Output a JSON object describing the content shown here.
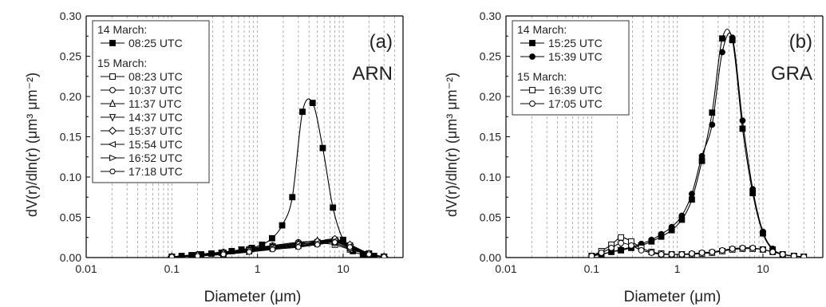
{
  "chart_data": [
    {
      "type": "line",
      "panel_label": "(a)",
      "site_label": "ARN",
      "xlabel": "Diameter (μm)",
      "ylabel": "dV(r)/dln(r) (μm³ μm⁻²)",
      "xscale": "log",
      "xlim": [
        0.01,
        50
      ],
      "ylim": [
        0,
        0.3
      ],
      "x_ticks": [
        "0.01",
        "0.1",
        "1",
        "10"
      ],
      "y_ticks": [
        "0.00",
        "0.05",
        "0.10",
        "0.15",
        "0.20",
        "0.25",
        "0.30"
      ],
      "legend": {
        "groups": [
          {
            "header": "14 March:",
            "entries": [
              "08:25 UTC"
            ]
          },
          {
            "header": "15 March:",
            "entries": [
              "08:23 UTC",
              "10:37 UTC",
              "11:37 UTC",
              "14:37 UTC",
              "15:37 UTC",
              "15:54 UTC",
              "16:52 UTC",
              "17:18 UTC"
            ]
          }
        ]
      },
      "series": [
        {
          "name": "08:25 UTC",
          "marker": "filled-square",
          "x": [
            0.1,
            0.13,
            0.17,
            0.22,
            0.29,
            0.38,
            0.5,
            0.65,
            0.86,
            1.13,
            1.48,
            1.94,
            2.55,
            3.35,
            4.4,
            5.78,
            7.6,
            10,
            13,
            17,
            23,
            30
          ],
          "y": [
            0.001,
            0.002,
            0.003,
            0.004,
            0.005,
            0.006,
            0.008,
            0.01,
            0.012,
            0.016,
            0.024,
            0.04,
            0.075,
            0.181,
            0.192,
            0.136,
            0.062,
            0.022,
            0.008,
            0.004,
            0.002,
            0.001
          ]
        },
        {
          "name": "08:23 UTC",
          "marker": "open-square",
          "x": [
            0.1,
            0.2,
            0.4,
            0.8,
            1.5,
            3,
            5,
            8,
            12,
            20,
            30
          ],
          "y": [
            0.001,
            0.003,
            0.006,
            0.01,
            0.014,
            0.017,
            0.018,
            0.016,
            0.01,
            0.004,
            0.001
          ]
        },
        {
          "name": "10:37 UTC",
          "marker": "open-circle",
          "x": [
            0.1,
            0.2,
            0.4,
            0.8,
            1.5,
            3,
            5,
            8,
            12,
            20,
            30
          ],
          "y": [
            0.001,
            0.004,
            0.007,
            0.011,
            0.015,
            0.019,
            0.02,
            0.018,
            0.011,
            0.004,
            0.001
          ]
        },
        {
          "name": "11:37 UTC",
          "marker": "open-triangle-up",
          "x": [
            0.1,
            0.2,
            0.4,
            0.8,
            1.5,
            3,
            5,
            8,
            12,
            20,
            30
          ],
          "y": [
            0.001,
            0.003,
            0.006,
            0.01,
            0.014,
            0.018,
            0.021,
            0.02,
            0.012,
            0.004,
            0.001
          ]
        },
        {
          "name": "14:37 UTC",
          "marker": "open-triangle-down",
          "x": [
            0.1,
            0.2,
            0.4,
            0.8,
            1.5,
            3,
            5,
            8,
            12,
            20,
            30
          ],
          "y": [
            0.001,
            0.002,
            0.005,
            0.009,
            0.013,
            0.017,
            0.019,
            0.022,
            0.015,
            0.005,
            0.001
          ]
        },
        {
          "name": "15:37 UTC",
          "marker": "open-diamond",
          "x": [
            0.1,
            0.2,
            0.4,
            0.8,
            1.5,
            3,
            5,
            8,
            12,
            20,
            30
          ],
          "y": [
            0.001,
            0.003,
            0.005,
            0.008,
            0.012,
            0.016,
            0.02,
            0.023,
            0.016,
            0.005,
            0.001
          ]
        },
        {
          "name": "15:54 UTC",
          "marker": "open-triangle-left",
          "x": [
            0.1,
            0.2,
            0.4,
            0.8,
            1.5,
            3,
            5,
            8,
            12,
            20,
            30
          ],
          "y": [
            0.001,
            0.002,
            0.004,
            0.008,
            0.012,
            0.015,
            0.018,
            0.021,
            0.014,
            0.004,
            0.001
          ]
        },
        {
          "name": "16:52 UTC",
          "marker": "open-triangle-right",
          "x": [
            0.1,
            0.2,
            0.4,
            0.8,
            1.5,
            3,
            5,
            8,
            12,
            20,
            30
          ],
          "y": [
            0.001,
            0.002,
            0.004,
            0.007,
            0.011,
            0.014,
            0.017,
            0.02,
            0.013,
            0.004,
            0.001
          ]
        },
        {
          "name": "17:18 UTC",
          "marker": "open-hexagon",
          "x": [
            0.1,
            0.2,
            0.4,
            0.8,
            1.5,
            3,
            5,
            8,
            12,
            20,
            30
          ],
          "y": [
            0.001,
            0.002,
            0.004,
            0.007,
            0.01,
            0.013,
            0.016,
            0.019,
            0.013,
            0.004,
            0.001
          ]
        }
      ]
    },
    {
      "type": "line",
      "panel_label": "(b)",
      "site_label": "GRA",
      "xlabel": "Diameter (μm)",
      "ylabel": "dV(r)/dln(r) (μm³ μm⁻²)",
      "xscale": "log",
      "xlim": [
        0.01,
        50
      ],
      "ylim": [
        0,
        0.3
      ],
      "x_ticks": [
        "0.01",
        "0.1",
        "1",
        "10"
      ],
      "y_ticks": [
        "0.00",
        "0.05",
        "0.10",
        "0.15",
        "0.20",
        "0.25",
        "0.30"
      ],
      "legend": {
        "groups": [
          {
            "header": "14 March:",
            "entries": [
              "15:25 UTC",
              "15:39 UTC"
            ]
          },
          {
            "header": "15 March:",
            "entries": [
              "16:39 UTC",
              "17:05 UTC"
            ]
          }
        ]
      },
      "series": [
        {
          "name": "15:25 UTC",
          "marker": "filled-square",
          "x": [
            0.1,
            0.13,
            0.17,
            0.22,
            0.29,
            0.38,
            0.5,
            0.65,
            0.86,
            1.13,
            1.48,
            1.94,
            2.55,
            3.35,
            4.4,
            5.78,
            7.6,
            10,
            13,
            17,
            23,
            30
          ],
          "y": [
            0.002,
            0.004,
            0.007,
            0.009,
            0.012,
            0.015,
            0.02,
            0.026,
            0.034,
            0.047,
            0.072,
            0.12,
            0.18,
            0.272,
            0.27,
            0.16,
            0.08,
            0.03,
            0.01,
            0.004,
            0.002,
            0.001
          ]
        },
        {
          "name": "15:39 UTC",
          "marker": "filled-circle",
          "x": [
            0.1,
            0.13,
            0.17,
            0.22,
            0.29,
            0.38,
            0.5,
            0.65,
            0.86,
            1.13,
            1.48,
            1.94,
            2.55,
            3.35,
            4.4,
            5.78,
            7.6,
            10,
            13,
            17,
            23,
            30
          ],
          "y": [
            0.002,
            0.004,
            0.007,
            0.01,
            0.013,
            0.017,
            0.022,
            0.029,
            0.038,
            0.052,
            0.079,
            0.126,
            0.165,
            0.255,
            0.273,
            0.17,
            0.085,
            0.032,
            0.011,
            0.004,
            0.002,
            0.001
          ]
        },
        {
          "name": "16:39 UTC",
          "marker": "open-square",
          "x": [
            0.1,
            0.13,
            0.17,
            0.22,
            0.29,
            0.38,
            0.5,
            0.65,
            0.86,
            1.13,
            1.48,
            1.94,
            2.55,
            3.35,
            4.4,
            5.78,
            7.6,
            10,
            13,
            17,
            23,
            30
          ],
          "y": [
            0.002,
            0.008,
            0.016,
            0.025,
            0.02,
            0.012,
            0.007,
            0.005,
            0.004,
            0.004,
            0.004,
            0.005,
            0.006,
            0.008,
            0.01,
            0.011,
            0.011,
            0.01,
            0.007,
            0.004,
            0.002,
            0.001
          ]
        },
        {
          "name": "17:05 UTC",
          "marker": "open-circle",
          "x": [
            0.1,
            0.13,
            0.17,
            0.22,
            0.29,
            0.38,
            0.5,
            0.65,
            0.86,
            1.13,
            1.48,
            1.94,
            2.55,
            3.35,
            4.4,
            5.78,
            7.6,
            10,
            13,
            17,
            23,
            30
          ],
          "y": [
            0.002,
            0.006,
            0.012,
            0.018,
            0.015,
            0.009,
            0.006,
            0.004,
            0.004,
            0.004,
            0.005,
            0.006,
            0.007,
            0.009,
            0.011,
            0.012,
            0.012,
            0.01,
            0.007,
            0.004,
            0.002,
            0.001
          ]
        }
      ]
    }
  ]
}
